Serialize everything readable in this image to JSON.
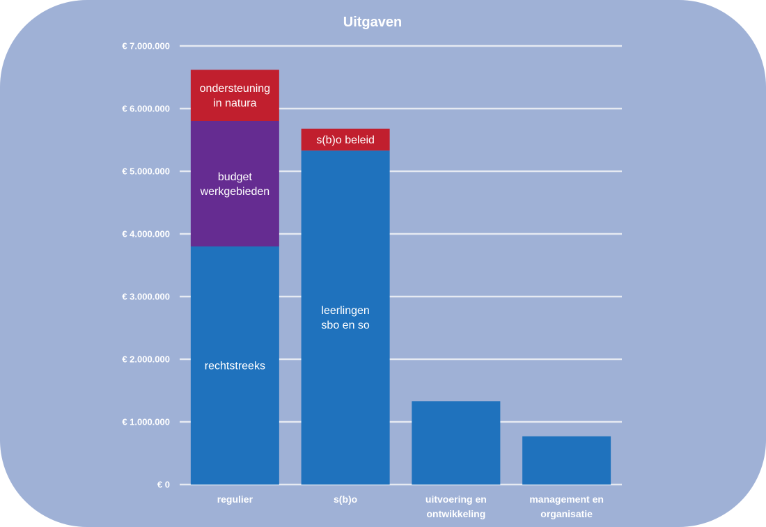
{
  "chart_data": {
    "type": "bar",
    "stacked": true,
    "title": "Uitgaven",
    "xlabel": "",
    "ylabel": "",
    "ylim": [
      0,
      7000000
    ],
    "grid": true,
    "legend": "none",
    "y_tick_labels": [
      "€ 0",
      "€ 1.000.000",
      "€ 2.000.000",
      "€ 3.000.000",
      "€ 4.000.000",
      "€ 5.000.000",
      "€ 6.000.000",
      "€ 7.000.000"
    ],
    "y_tick_values": [
      0,
      1000000,
      2000000,
      3000000,
      4000000,
      5000000,
      6000000,
      7000000
    ],
    "categories": [
      [
        "regulier"
      ],
      [
        "s(b)o"
      ],
      [
        "uitvoering en",
        "ontwikkeling"
      ],
      [
        "management en",
        "organisatie"
      ]
    ],
    "bars": [
      {
        "segments": [
          {
            "value": 3800000,
            "color": "#1f72bd",
            "label": [
              "rechtstreeks"
            ]
          },
          {
            "value": 2000000,
            "color": "#652c91",
            "label": [
              "budget",
              "werkgebieden"
            ]
          },
          {
            "value": 820000,
            "color": "#c11f2e",
            "label": [
              "ondersteuning",
              "in natura"
            ]
          }
        ]
      },
      {
        "segments": [
          {
            "value": 5330000,
            "color": "#1f72bd",
            "label": [
              "leerlingen",
              "sbo en so"
            ]
          },
          {
            "value": 350000,
            "color": "#c11f2e",
            "label": [
              "s(b)o beleid"
            ]
          }
        ]
      },
      {
        "segments": [
          {
            "value": 1330000,
            "color": "#1f72bd",
            "label": []
          }
        ]
      },
      {
        "segments": [
          {
            "value": 770000,
            "color": "#1f72bd",
            "label": []
          }
        ]
      }
    ],
    "colors": {
      "background": "#9fb1d6",
      "grid": "#e6eaf2",
      "text": "#ffffff"
    }
  }
}
